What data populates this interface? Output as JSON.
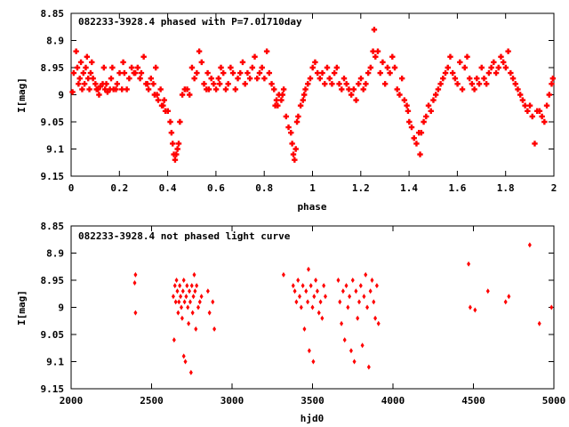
{
  "chart_data": [
    {
      "type": "scatter",
      "title": "082233-3928.4 phased with P=7.01710day",
      "xlabel": "phase",
      "ylabel": "I[mag]",
      "xlim": [
        0,
        2
      ],
      "ylim": [
        9.15,
        8.85
      ],
      "y_inverted": true,
      "marker_color": "#ff0000",
      "marker": "cross",
      "xticks": [
        "0",
        "0.2",
        "0.4",
        "0.6",
        "0.8",
        "1",
        "1.2",
        "1.4",
        "1.6",
        "1.8",
        "2"
      ],
      "yticks": [
        "8.85",
        "8.9",
        "8.95",
        "9",
        "9.05",
        "9.1",
        "9.15"
      ],
      "grid": false,
      "points": [
        [
          0.005,
          8.995
        ],
        [
          0.01,
          8.96
        ],
        [
          0.02,
          8.92
        ],
        [
          0.025,
          8.95
        ],
        [
          0.03,
          8.98
        ],
        [
          0.035,
          8.97
        ],
        [
          0.04,
          8.94
        ],
        [
          0.045,
          8.99
        ],
        [
          0.05,
          8.96
        ],
        [
          0.055,
          8.98
        ],
        [
          0.06,
          8.95
        ],
        [
          0.065,
          8.93
        ],
        [
          0.07,
          8.97
        ],
        [
          0.075,
          8.99
        ],
        [
          0.08,
          8.96
        ],
        [
          0.085,
          8.94
        ],
        [
          0.09,
          8.97
        ],
        [
          0.1,
          8.98
        ],
        [
          0.105,
          8.99
        ],
        [
          0.11,
          8.99
        ],
        [
          0.115,
          9.0
        ],
        [
          0.12,
          8.985
        ],
        [
          0.13,
          8.98
        ],
        [
          0.135,
          8.95
        ],
        [
          0.14,
          8.99
        ],
        [
          0.145,
          8.98
        ],
        [
          0.15,
          8.995
        ],
        [
          0.16,
          8.99
        ],
        [
          0.165,
          8.97
        ],
        [
          0.17,
          8.95
        ],
        [
          0.175,
          8.99
        ],
        [
          0.185,
          8.99
        ],
        [
          0.19,
          8.98
        ],
        [
          0.2,
          8.96
        ],
        [
          0.21,
          8.99
        ],
        [
          0.215,
          8.94
        ],
        [
          0.22,
          8.96
        ],
        [
          0.23,
          8.99
        ],
        [
          0.24,
          8.97
        ],
        [
          0.25,
          8.95
        ],
        [
          0.26,
          8.96
        ],
        [
          0.265,
          8.96
        ],
        [
          0.275,
          8.95
        ],
        [
          0.285,
          8.97
        ],
        [
          0.29,
          8.96
        ],
        [
          0.3,
          8.93
        ],
        [
          0.31,
          8.98
        ],
        [
          0.315,
          8.98
        ],
        [
          0.32,
          8.99
        ],
        [
          0.33,
          8.97
        ],
        [
          0.34,
          8.98
        ],
        [
          0.345,
          9.0
        ],
        [
          0.35,
          8.95
        ],
        [
          0.355,
          9.0
        ],
        [
          0.36,
          9.01
        ],
        [
          0.37,
          8.99
        ],
        [
          0.375,
          9.02
        ],
        [
          0.38,
          9.02
        ],
        [
          0.385,
          9.01
        ],
        [
          0.39,
          9.03
        ],
        [
          0.4,
          9.03
        ],
        [
          0.41,
          9.05
        ],
        [
          0.415,
          9.07
        ],
        [
          0.42,
          9.09
        ],
        [
          0.425,
          9.11
        ],
        [
          0.43,
          9.12
        ],
        [
          0.435,
          9.11
        ],
        [
          0.44,
          9.1
        ],
        [
          0.445,
          9.09
        ],
        [
          0.45,
          9.05
        ],
        [
          0.46,
          9.0
        ],
        [
          0.47,
          8.99
        ],
        [
          0.48,
          8.99
        ],
        [
          0.49,
          9.0
        ],
        [
          0.5,
          8.95
        ],
        [
          0.51,
          8.97
        ],
        [
          0.52,
          8.96
        ],
        [
          0.53,
          8.92
        ],
        [
          0.54,
          8.94
        ],
        [
          0.55,
          8.98
        ],
        [
          0.56,
          8.99
        ],
        [
          0.565,
          8.96
        ],
        [
          0.57,
          8.99
        ],
        [
          0.58,
          8.97
        ],
        [
          0.59,
          8.98
        ],
        [
          0.6,
          8.99
        ],
        [
          0.61,
          8.97
        ],
        [
          0.615,
          8.98
        ],
        [
          0.62,
          8.95
        ],
        [
          0.63,
          8.96
        ],
        [
          0.64,
          8.99
        ],
        [
          0.65,
          8.98
        ],
        [
          0.66,
          8.95
        ],
        [
          0.67,
          8.96
        ],
        [
          0.68,
          8.99
        ],
        [
          0.69,
          8.97
        ],
        [
          0.7,
          8.96
        ],
        [
          0.71,
          8.94
        ],
        [
          0.72,
          8.98
        ],
        [
          0.73,
          8.96
        ],
        [
          0.74,
          8.97
        ],
        [
          0.75,
          8.95
        ],
        [
          0.76,
          8.93
        ],
        [
          0.77,
          8.97
        ],
        [
          0.78,
          8.96
        ],
        [
          0.79,
          8.95
        ],
        [
          0.8,
          8.97
        ],
        [
          0.81,
          8.92
        ],
        [
          0.82,
          8.96
        ],
        [
          0.83,
          8.98
        ],
        [
          0.84,
          8.99
        ],
        [
          0.845,
          9.02
        ],
        [
          0.85,
          9.01
        ],
        [
          0.855,
          9.02
        ],
        [
          0.86,
          9.0
        ],
        [
          0.87,
          9.01
        ],
        [
          0.875,
          9.0
        ],
        [
          0.88,
          8.99
        ],
        [
          0.89,
          9.04
        ],
        [
          0.9,
          9.06
        ],
        [
          0.91,
          9.07
        ],
        [
          0.915,
          9.09
        ],
        [
          0.92,
          9.11
        ],
        [
          0.925,
          9.12
        ],
        [
          0.93,
          9.1
        ],
        [
          0.935,
          9.05
        ],
        [
          0.94,
          9.04
        ],
        [
          0.95,
          9.02
        ],
        [
          0.96,
          9.01
        ],
        [
          0.965,
          9.0
        ],
        [
          0.97,
          8.99
        ],
        [
          0.98,
          8.98
        ],
        [
          0.99,
          8.97
        ],
        [
          1.0,
          8.95
        ],
        [
          1.01,
          8.94
        ],
        [
          1.02,
          8.96
        ],
        [
          1.03,
          8.97
        ],
        [
          1.04,
          8.96
        ],
        [
          1.05,
          8.98
        ],
        [
          1.06,
          8.95
        ],
        [
          1.07,
          8.97
        ],
        [
          1.08,
          8.98
        ],
        [
          1.09,
          8.96
        ],
        [
          1.1,
          8.95
        ],
        [
          1.11,
          8.98
        ],
        [
          1.12,
          8.99
        ],
        [
          1.13,
          8.97
        ],
        [
          1.14,
          8.98
        ],
        [
          1.15,
          8.99
        ],
        [
          1.16,
          9.0
        ],
        [
          1.17,
          8.99
        ],
        [
          1.18,
          9.01
        ],
        [
          1.19,
          8.98
        ],
        [
          1.2,
          8.97
        ],
        [
          1.21,
          8.99
        ],
        [
          1.22,
          8.98
        ],
        [
          1.23,
          8.96
        ],
        [
          1.24,
          8.95
        ],
        [
          1.25,
          8.92
        ],
        [
          1.255,
          8.88
        ],
        [
          1.26,
          8.93
        ],
        [
          1.27,
          8.92
        ],
        [
          1.28,
          8.96
        ],
        [
          1.29,
          8.94
        ],
        [
          1.3,
          8.98
        ],
        [
          1.31,
          8.95
        ],
        [
          1.32,
          8.96
        ],
        [
          1.33,
          8.93
        ],
        [
          1.34,
          8.95
        ],
        [
          1.35,
          8.99
        ],
        [
          1.36,
          9.0
        ],
        [
          1.37,
          8.97
        ],
        [
          1.38,
          9.01
        ],
        [
          1.39,
          9.02
        ],
        [
          1.395,
          9.03
        ],
        [
          1.4,
          9.05
        ],
        [
          1.41,
          9.06
        ],
        [
          1.42,
          9.08
        ],
        [
          1.43,
          9.09
        ],
        [
          1.44,
          9.07
        ],
        [
          1.445,
          9.11
        ],
        [
          1.45,
          9.07
        ],
        [
          1.46,
          9.05
        ],
        [
          1.47,
          9.04
        ],
        [
          1.48,
          9.02
        ],
        [
          1.49,
          9.03
        ],
        [
          1.5,
          9.01
        ],
        [
          1.51,
          9.0
        ],
        [
          1.52,
          8.99
        ],
        [
          1.53,
          8.98
        ],
        [
          1.54,
          8.97
        ],
        [
          1.55,
          8.96
        ],
        [
          1.56,
          8.95
        ],
        [
          1.57,
          8.93
        ],
        [
          1.58,
          8.96
        ],
        [
          1.59,
          8.97
        ],
        [
          1.6,
          8.98
        ],
        [
          1.61,
          8.94
        ],
        [
          1.62,
          8.99
        ],
        [
          1.63,
          8.95
        ],
        [
          1.64,
          8.93
        ],
        [
          1.65,
          8.97
        ],
        [
          1.66,
          8.98
        ],
        [
          1.67,
          8.99
        ],
        [
          1.68,
          8.97
        ],
        [
          1.69,
          8.98
        ],
        [
          1.7,
          8.95
        ],
        [
          1.71,
          8.97
        ],
        [
          1.72,
          8.98
        ],
        [
          1.73,
          8.96
        ],
        [
          1.74,
          8.95
        ],
        [
          1.75,
          8.94
        ],
        [
          1.76,
          8.96
        ],
        [
          1.77,
          8.95
        ],
        [
          1.78,
          8.93
        ],
        [
          1.79,
          8.94
        ],
        [
          1.8,
          8.95
        ],
        [
          1.81,
          8.92
        ],
        [
          1.82,
          8.96
        ],
        [
          1.83,
          8.97
        ],
        [
          1.84,
          8.98
        ],
        [
          1.85,
          8.99
        ],
        [
          1.86,
          9.0
        ],
        [
          1.87,
          9.01
        ],
        [
          1.88,
          9.02
        ],
        [
          1.89,
          9.03
        ],
        [
          1.9,
          9.02
        ],
        [
          1.91,
          9.04
        ],
        [
          1.92,
          9.09
        ],
        [
          1.93,
          9.03
        ],
        [
          1.94,
          9.03
        ],
        [
          1.95,
          9.04
        ],
        [
          1.96,
          9.05
        ],
        [
          1.97,
          9.02
        ],
        [
          1.98,
          9.0
        ],
        [
          1.99,
          8.98
        ],
        [
          1.995,
          8.97
        ]
      ]
    },
    {
      "type": "scatter",
      "title": "082233-3928.4 not phased light curve",
      "xlabel": "hjd0",
      "ylabel": "I[mag]",
      "xlim": [
        2000,
        5000
      ],
      "ylim": [
        9.15,
        8.85
      ],
      "y_inverted": true,
      "marker_color": "#ff0000",
      "marker": "diamond",
      "xticks": [
        "2000",
        "2500",
        "3000",
        "3500",
        "4000",
        "4500",
        "5000"
      ],
      "yticks": [
        "8.85",
        "8.9",
        "8.95",
        "9",
        "9.05",
        "9.1",
        "9.15"
      ],
      "grid": false,
      "points": [
        [
          2400,
          8.94
        ],
        [
          2395,
          8.955
        ],
        [
          2400,
          9.01
        ],
        [
          2635,
          8.98
        ],
        [
          2640,
          9.06
        ],
        [
          2645,
          8.96
        ],
        [
          2650,
          8.99
        ],
        [
          2655,
          8.95
        ],
        [
          2660,
          8.97
        ],
        [
          2665,
          9.01
        ],
        [
          2670,
          8.99
        ],
        [
          2675,
          8.96
        ],
        [
          2680,
          8.98
        ],
        [
          2685,
          9.0
        ],
        [
          2690,
          9.02
        ],
        [
          2695,
          8.97
        ],
        [
          2700,
          8.95
        ],
        [
          2705,
          8.99
        ],
        [
          2710,
          9.1
        ],
        [
          2715,
          8.98
        ],
        [
          2720,
          8.96
        ],
        [
          2725,
          9.0
        ],
        [
          2730,
          9.03
        ],
        [
          2735,
          8.97
        ],
        [
          2740,
          8.99
        ],
        [
          2745,
          9.12
        ],
        [
          2750,
          8.96
        ],
        [
          2755,
          9.01
        ],
        [
          2760,
          8.98
        ],
        [
          2765,
          8.94
        ],
        [
          2770,
          8.97
        ],
        [
          2775,
          9.04
        ],
        [
          2780,
          8.96
        ],
        [
          2700,
          9.09
        ],
        [
          2790,
          9.0
        ],
        [
          2800,
          8.99
        ],
        [
          2810,
          8.98
        ],
        [
          2850,
          8.97
        ],
        [
          2860,
          9.01
        ],
        [
          2880,
          8.99
        ],
        [
          2890,
          9.04
        ],
        [
          3320,
          8.94
        ],
        [
          3380,
          8.96
        ],
        [
          3390,
          8.97
        ],
        [
          3400,
          8.99
        ],
        [
          3410,
          8.95
        ],
        [
          3420,
          8.98
        ],
        [
          3430,
          9.0
        ],
        [
          3440,
          8.96
        ],
        [
          3450,
          9.04
        ],
        [
          3460,
          8.97
        ],
        [
          3470,
          8.99
        ],
        [
          3475,
          8.93
        ],
        [
          3480,
          9.08
        ],
        [
          3490,
          8.96
        ],
        [
          3500,
          9.0
        ],
        [
          3505,
          9.1
        ],
        [
          3510,
          8.98
        ],
        [
          3520,
          8.95
        ],
        [
          3530,
          8.97
        ],
        [
          3540,
          9.01
        ],
        [
          3550,
          8.99
        ],
        [
          3560,
          9.02
        ],
        [
          3570,
          8.96
        ],
        [
          3580,
          8.98
        ],
        [
          3660,
          8.95
        ],
        [
          3670,
          8.99
        ],
        [
          3680,
          9.03
        ],
        [
          3690,
          8.97
        ],
        [
          3700,
          9.06
        ],
        [
          3710,
          8.96
        ],
        [
          3720,
          9.0
        ],
        [
          3730,
          8.98
        ],
        [
          3740,
          9.08
        ],
        [
          3750,
          8.95
        ],
        [
          3760,
          9.1
        ],
        [
          3770,
          8.97
        ],
        [
          3780,
          9.02
        ],
        [
          3790,
          8.99
        ],
        [
          3800,
          8.96
        ],
        [
          3810,
          9.07
        ],
        [
          3820,
          8.98
        ],
        [
          3830,
          8.94
        ],
        [
          3840,
          9.0
        ],
        [
          3850,
          9.11
        ],
        [
          3860,
          8.97
        ],
        [
          3870,
          8.95
        ],
        [
          3880,
          8.99
        ],
        [
          3890,
          9.02
        ],
        [
          3900,
          8.96
        ],
        [
          3910,
          9.03
        ],
        [
          4470,
          8.92
        ],
        [
          4480,
          9.0
        ],
        [
          4510,
          9.005
        ],
        [
          4590,
          8.97
        ],
        [
          4700,
          8.99
        ],
        [
          4720,
          8.98
        ],
        [
          4850,
          8.885
        ],
        [
          4910,
          9.03
        ],
        [
          4985,
          9.0
        ]
      ]
    }
  ]
}
